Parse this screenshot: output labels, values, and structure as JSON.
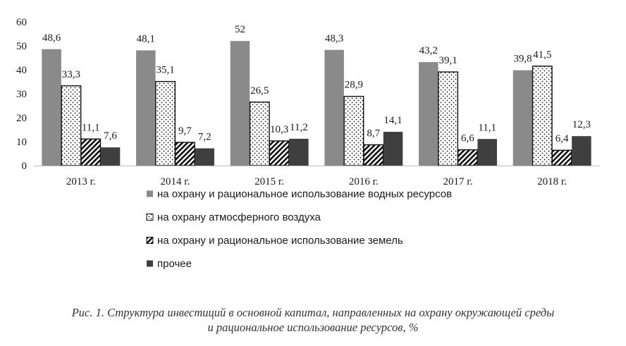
{
  "chart_data": {
    "type": "bar",
    "categories": [
      "2013 г.",
      "2014 г.",
      "2015 г.",
      "2016 г.",
      "2017 г.",
      "2018 г."
    ],
    "series": [
      {
        "name": "на охрану и рациональное использование водных ресурсов",
        "values": [
          48.6,
          48.1,
          52,
          48.3,
          43.2,
          39.8
        ],
        "labels": [
          "48,6",
          "48,1",
          "52",
          "48,3",
          "43,2",
          "39,8"
        ],
        "color": "#8a8a8a",
        "pattern": "solid"
      },
      {
        "name": "на охрану атмосферного воздуха",
        "values": [
          33.3,
          35.1,
          26.5,
          28.9,
          39.1,
          41.5
        ],
        "labels": [
          "33,3",
          "35,1",
          "26,5",
          "28,9",
          "39,1",
          "41,5"
        ],
        "color": "#111111",
        "pattern": "dots"
      },
      {
        "name": "на охрану и рациональное использование земель",
        "values": [
          11.1,
          9.7,
          10.3,
          8.7,
          6.6,
          6.4
        ],
        "labels": [
          "11,1",
          "9,7",
          "10,3",
          "8,7",
          "6,6",
          "6,4"
        ],
        "color": "#111111",
        "pattern": "hatch"
      },
      {
        "name": "прочее",
        "values": [
          7.6,
          7.2,
          11.2,
          14.1,
          11.1,
          12.3
        ],
        "labels": [
          "7,6",
          "7,2",
          "11,2",
          "14,1",
          "11,1",
          "12,3"
        ],
        "color": "#3f3f3f",
        "pattern": "solid"
      }
    ],
    "yticks": [
      "0",
      "10",
      "20",
      "30",
      "40",
      "50",
      "60"
    ],
    "ylim": [
      0,
      60
    ],
    "grid": false,
    "legend": "bottom"
  },
  "caption": {
    "line1": "Рис. 1. Структура инвестиций в основной капитал, направленных на охрану окружающей среды",
    "line2": "и рациональное использование ресурсов, %"
  }
}
